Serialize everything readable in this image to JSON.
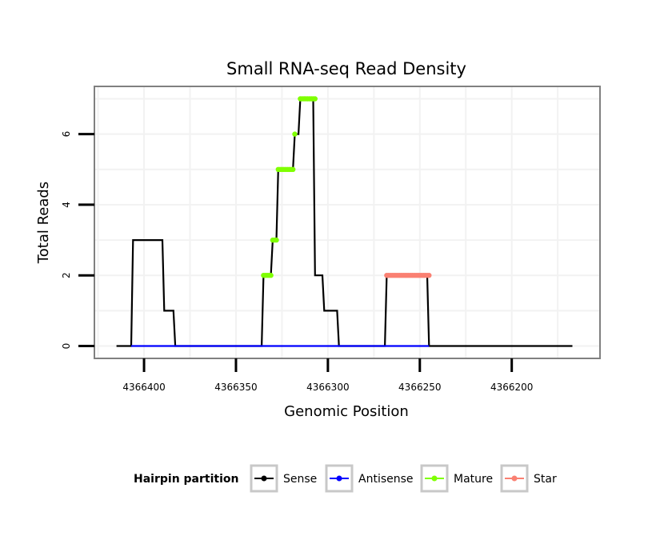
{
  "chart_data": {
    "type": "line",
    "title": "Small RNA-seq Read Density",
    "xlabel": "Genomic Position",
    "ylabel": "Total Reads",
    "x_reversed": true,
    "xlim": [
      4366427,
      4366152
    ],
    "ylim": [
      -0.35,
      7.35
    ],
    "x_ticks": [
      4366400,
      4366350,
      4366300,
      4366250,
      4366200
    ],
    "x_tick_labels": [
      "4366400",
      "4366350",
      "4366300",
      "4366250",
      "4366200"
    ],
    "y_ticks": [
      0,
      2,
      4,
      6
    ],
    "y_tick_labels": [
      "0",
      "2",
      "4",
      "6"
    ],
    "grid": true,
    "legend": {
      "title": "Hairpin partition",
      "position": "bottom",
      "entries": [
        {
          "name": "Sense",
          "color": "#000000"
        },
        {
          "name": "Antisense",
          "color": "#0000ff"
        },
        {
          "name": "Mature",
          "color": "#7fff00"
        },
        {
          "name": "Star",
          "color": "#fa8072"
        }
      ]
    },
    "series": [
      {
        "name": "Sense",
        "color": "#000000",
        "style": "line",
        "x": [
          4366415,
          4366407,
          4366406,
          4366390,
          4366389,
          4366384,
          4366383,
          4366378,
          4366377,
          4366336,
          4366335,
          4366331,
          4366330,
          4366328,
          4366327,
          4366325,
          4366324,
          4366319,
          4366318,
          4366316,
          4366315,
          4366310,
          4366309,
          4366308,
          4366307,
          4366303,
          4366302,
          4366295,
          4366294,
          4366288,
          4366287,
          4366285,
          4366284,
          4366278,
          4366277,
          4366269,
          4366268,
          4366246,
          4366245,
          4366167
        ],
        "y": [
          0,
          0,
          3,
          3,
          1,
          1,
          0,
          0,
          0,
          0,
          2,
          2,
          3,
          3,
          5,
          5,
          5,
          5,
          6,
          6,
          7,
          7,
          7,
          7,
          2,
          2,
          1,
          1,
          0,
          0,
          0,
          0,
          0,
          0,
          0,
          0,
          2,
          2,
          0,
          0
        ]
      },
      {
        "name": "Antisense",
        "color": "#0000ff",
        "style": "line",
        "x": [
          4366407,
          4366383,
          4366336,
          4366294,
          4366269,
          4366245
        ],
        "y": [
          0,
          0,
          0,
          0,
          0,
          0
        ]
      },
      {
        "name": "Mature",
        "color": "#7fff00",
        "style": "points",
        "x": [
          4366335,
          4366334,
          4366333,
          4366332,
          4366331,
          4366330,
          4366329,
          4366328,
          4366327,
          4366326,
          4366325,
          4366324,
          4366323,
          4366322,
          4366321,
          4366320,
          4366319,
          4366318,
          4366315,
          4366314,
          4366313,
          4366312,
          4366311,
          4366310,
          4366309,
          4366308,
          4366307
        ],
        "y": [
          2,
          2,
          2,
          2,
          2,
          3,
          3,
          3,
          5,
          5,
          5,
          5,
          5,
          5,
          5,
          5,
          5,
          6,
          7,
          7,
          7,
          7,
          7,
          7,
          7,
          7,
          7
        ]
      },
      {
        "name": "Star",
        "color": "#fa8072",
        "style": "points",
        "x": [
          4366268,
          4366267,
          4366266,
          4366265,
          4366264,
          4366263,
          4366262,
          4366261,
          4366260,
          4366259,
          4366258,
          4366257,
          4366256,
          4366255,
          4366254,
          4366253,
          4366252,
          4366251,
          4366250,
          4366249,
          4366248,
          4366247,
          4366246,
          4366245
        ],
        "y": [
          2,
          2,
          2,
          2,
          2,
          2,
          2,
          2,
          2,
          2,
          2,
          2,
          2,
          2,
          2,
          2,
          2,
          2,
          2,
          2,
          2,
          2,
          2,
          2
        ]
      }
    ]
  }
}
